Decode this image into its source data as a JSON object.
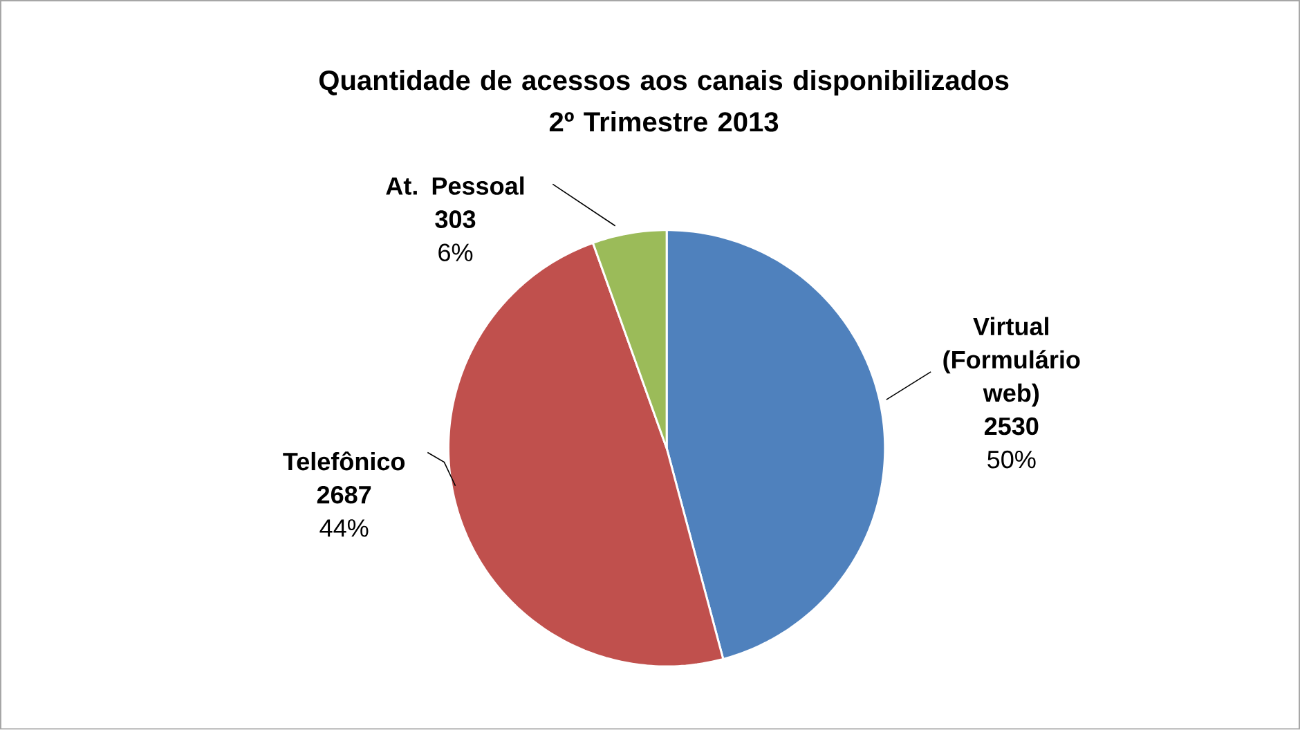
{
  "chart_data": {
    "type": "pie",
    "title": "Quantidade de acessos aos canais disponibilizados\n2º Trimestre 2013",
    "categories": [
      "Virtual (Formulário web)",
      "Telefônico",
      "At. Pessoal"
    ],
    "values": [
      2530,
      2687,
      303
    ],
    "colors": [
      "#4f81bd",
      "#c0504d",
      "#9bbb59"
    ],
    "data_labels": true,
    "annotations": [
      "50%",
      "44%",
      "6%"
    ]
  }
}
